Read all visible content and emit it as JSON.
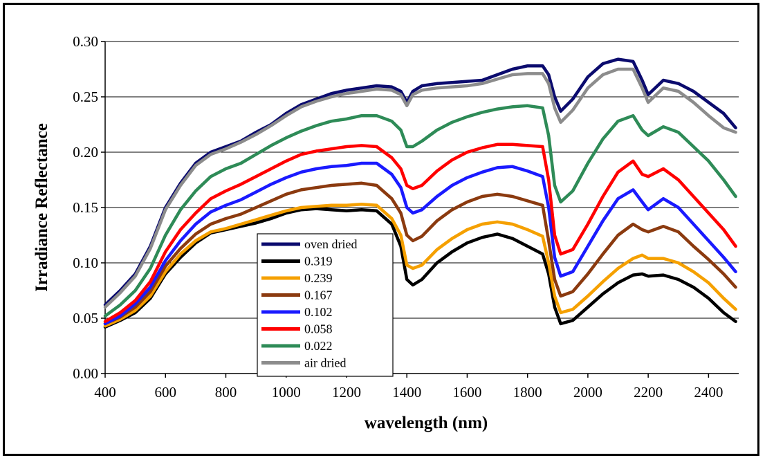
{
  "chart_data": {
    "type": "line",
    "xlabel": "wavelength (nm)",
    "ylabel": "Irradiance Reflectance",
    "xlim": [
      400,
      2500
    ],
    "ylim": [
      0.0,
      0.3
    ],
    "x_ticks": [
      "400",
      "600",
      "800",
      "1000",
      "1200",
      "1400",
      "1600",
      "1800",
      "2000",
      "2200",
      "2400"
    ],
    "y_ticks": [
      "0.00",
      "0.05",
      "0.10",
      "0.15",
      "0.20",
      "0.25",
      "0.30"
    ],
    "grid": "horizontal",
    "legend_position": "bottom-center",
    "x": [
      400,
      450,
      500,
      550,
      600,
      650,
      700,
      750,
      800,
      850,
      900,
      950,
      1000,
      1050,
      1100,
      1150,
      1200,
      1250,
      1300,
      1350,
      1380,
      1400,
      1420,
      1450,
      1500,
      1550,
      1600,
      1650,
      1700,
      1750,
      1800,
      1850,
      1870,
      1890,
      1910,
      1950,
      2000,
      2050,
      2100,
      2150,
      2180,
      2200,
      2250,
      2300,
      2350,
      2400,
      2450,
      2490
    ],
    "series": [
      {
        "name": "oven dried",
        "color": "#0b0b6e",
        "values": [
          0.062,
          0.075,
          0.09,
          0.115,
          0.15,
          0.172,
          0.19,
          0.2,
          0.205,
          0.21,
          0.218,
          0.225,
          0.235,
          0.243,
          0.248,
          0.253,
          0.256,
          0.258,
          0.26,
          0.259,
          0.255,
          0.245,
          0.255,
          0.26,
          0.262,
          0.263,
          0.264,
          0.265,
          0.27,
          0.275,
          0.278,
          0.278,
          0.27,
          0.25,
          0.237,
          0.248,
          0.268,
          0.28,
          0.284,
          0.282,
          0.265,
          0.252,
          0.265,
          0.262,
          0.255,
          0.245,
          0.235,
          0.222
        ]
      },
      {
        "name": "0.319",
        "color": "#000000",
        "values": [
          0.042,
          0.048,
          0.055,
          0.068,
          0.09,
          0.105,
          0.118,
          0.127,
          0.13,
          0.133,
          0.136,
          0.14,
          0.145,
          0.148,
          0.149,
          0.148,
          0.147,
          0.148,
          0.147,
          0.135,
          0.115,
          0.085,
          0.08,
          0.085,
          0.1,
          0.11,
          0.118,
          0.123,
          0.126,
          0.122,
          0.115,
          0.108,
          0.09,
          0.06,
          0.045,
          0.048,
          0.06,
          0.072,
          0.082,
          0.089,
          0.09,
          0.088,
          0.089,
          0.085,
          0.078,
          0.068,
          0.055,
          0.047
        ]
      },
      {
        "name": "0.239",
        "color": "#f5a000",
        "values": [
          0.043,
          0.049,
          0.057,
          0.07,
          0.092,
          0.108,
          0.12,
          0.128,
          0.131,
          0.135,
          0.139,
          0.143,
          0.147,
          0.15,
          0.151,
          0.152,
          0.152,
          0.153,
          0.152,
          0.14,
          0.125,
          0.098,
          0.095,
          0.098,
          0.112,
          0.122,
          0.13,
          0.135,
          0.137,
          0.135,
          0.13,
          0.124,
          0.1,
          0.07,
          0.055,
          0.058,
          0.07,
          0.083,
          0.095,
          0.104,
          0.107,
          0.104,
          0.104,
          0.1,
          0.092,
          0.082,
          0.068,
          0.058
        ]
      },
      {
        "name": "0.167",
        "color": "#8b3a0f",
        "values": [
          0.045,
          0.051,
          0.06,
          0.074,
          0.097,
          0.113,
          0.126,
          0.135,
          0.14,
          0.144,
          0.15,
          0.156,
          0.162,
          0.166,
          0.168,
          0.17,
          0.171,
          0.172,
          0.17,
          0.158,
          0.145,
          0.125,
          0.12,
          0.124,
          0.138,
          0.148,
          0.155,
          0.16,
          0.162,
          0.16,
          0.156,
          0.152,
          0.12,
          0.085,
          0.07,
          0.074,
          0.09,
          0.108,
          0.125,
          0.135,
          0.13,
          0.128,
          0.133,
          0.128,
          0.115,
          0.103,
          0.09,
          0.078
        ]
      },
      {
        "name": "0.102",
        "color": "#1a1aff",
        "values": [
          0.045,
          0.052,
          0.063,
          0.078,
          0.102,
          0.12,
          0.135,
          0.146,
          0.152,
          0.157,
          0.164,
          0.171,
          0.177,
          0.182,
          0.185,
          0.187,
          0.188,
          0.19,
          0.19,
          0.18,
          0.168,
          0.15,
          0.145,
          0.148,
          0.16,
          0.17,
          0.177,
          0.182,
          0.186,
          0.187,
          0.183,
          0.178,
          0.15,
          0.105,
          0.088,
          0.092,
          0.115,
          0.138,
          0.158,
          0.166,
          0.155,
          0.148,
          0.158,
          0.15,
          0.135,
          0.12,
          0.105,
          0.092
        ]
      },
      {
        "name": "0.058",
        "color": "#ff0000",
        "values": [
          0.047,
          0.055,
          0.066,
          0.083,
          0.11,
          0.13,
          0.145,
          0.158,
          0.165,
          0.171,
          0.178,
          0.185,
          0.192,
          0.198,
          0.201,
          0.203,
          0.205,
          0.206,
          0.205,
          0.195,
          0.185,
          0.17,
          0.167,
          0.17,
          0.183,
          0.193,
          0.2,
          0.204,
          0.207,
          0.207,
          0.206,
          0.205,
          0.175,
          0.125,
          0.108,
          0.112,
          0.135,
          0.16,
          0.182,
          0.192,
          0.18,
          0.178,
          0.185,
          0.175,
          0.16,
          0.145,
          0.13,
          0.115
        ]
      },
      {
        "name": "0.022",
        "color": "#2e8b57",
        "values": [
          0.052,
          0.062,
          0.075,
          0.095,
          0.125,
          0.148,
          0.165,
          0.178,
          0.185,
          0.19,
          0.198,
          0.206,
          0.213,
          0.219,
          0.224,
          0.228,
          0.23,
          0.233,
          0.233,
          0.228,
          0.22,
          0.205,
          0.205,
          0.21,
          0.22,
          0.227,
          0.232,
          0.236,
          0.239,
          0.241,
          0.242,
          0.24,
          0.215,
          0.17,
          0.155,
          0.165,
          0.19,
          0.212,
          0.228,
          0.233,
          0.22,
          0.215,
          0.223,
          0.218,
          0.205,
          0.192,
          0.175,
          0.16
        ]
      },
      {
        "name": "air dried",
        "color": "#8c8c8c",
        "values": [
          0.06,
          0.073,
          0.088,
          0.113,
          0.148,
          0.17,
          0.188,
          0.198,
          0.203,
          0.209,
          0.216,
          0.224,
          0.233,
          0.241,
          0.246,
          0.25,
          0.253,
          0.255,
          0.257,
          0.256,
          0.252,
          0.242,
          0.252,
          0.256,
          0.258,
          0.259,
          0.26,
          0.262,
          0.266,
          0.27,
          0.271,
          0.271,
          0.262,
          0.24,
          0.227,
          0.238,
          0.258,
          0.27,
          0.275,
          0.275,
          0.258,
          0.245,
          0.258,
          0.255,
          0.245,
          0.233,
          0.222,
          0.218
        ]
      }
    ]
  }
}
